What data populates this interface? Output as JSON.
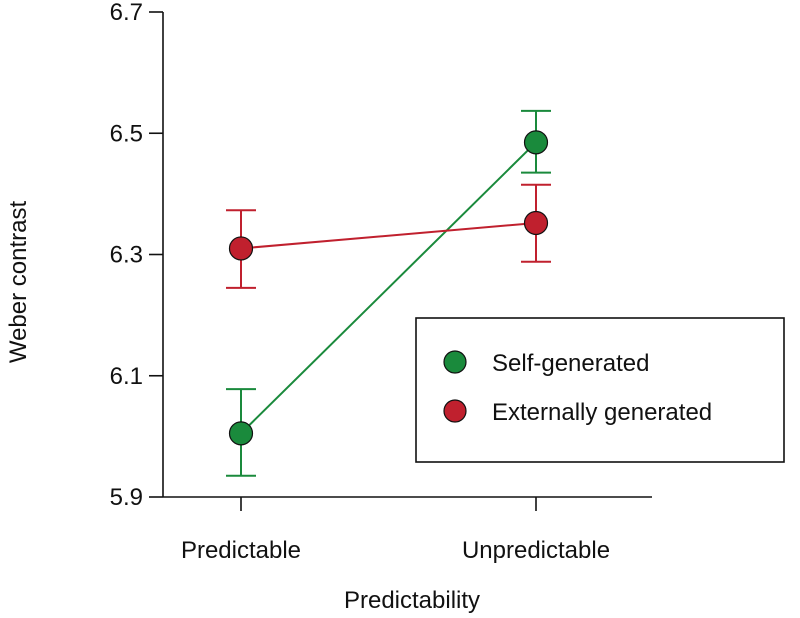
{
  "chart_data": {
    "type": "line",
    "title": "",
    "xlabel": "Predictability",
    "ylabel": "Weber contrast",
    "categories": [
      "Predictable",
      "Unpredictable"
    ],
    "ylim": [
      5.9,
      6.7
    ],
    "yticks": [
      "5.9",
      "6.1",
      "6.3",
      "6.5",
      "6.7"
    ],
    "grid": false,
    "legend_position": "lower-right",
    "series": [
      {
        "name": "Self-generated",
        "color": "#1a8a3c",
        "values": [
          6.005,
          6.485
        ],
        "error_low": [
          5.935,
          6.435
        ],
        "error_high": [
          6.078,
          6.537
        ]
      },
      {
        "name": "Externally generated",
        "color": "#c0202e",
        "values": [
          6.31,
          6.352
        ],
        "error_low": [
          6.245,
          6.288
        ],
        "error_high": [
          6.373,
          6.415
        ]
      }
    ]
  }
}
